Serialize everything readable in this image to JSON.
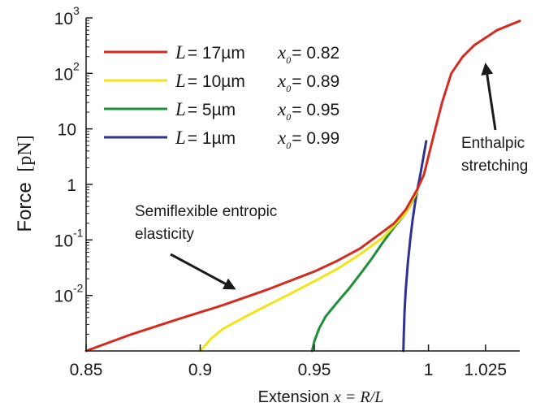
{
  "chart_data": {
    "type": "line",
    "xlabel_prefix": "Extension ",
    "xlabel_math": "x = R/L",
    "ylabel_word": "Force",
    "ylabel_unit": "[pN]",
    "x_scale": "linear",
    "y_scale": "log",
    "xlim": [
      0.85,
      1.04
    ],
    "ylim": [
      0.001,
      1000
    ],
    "x_ticks": [
      {
        "value": 0.85,
        "label": "0.85"
      },
      {
        "value": 0.9,
        "label": "0.9"
      },
      {
        "value": 0.95,
        "label": "0.95"
      },
      {
        "value": 1.0,
        "label": "1"
      },
      {
        "value": 1.025,
        "label": "1.025"
      }
    ],
    "y_ticks": [
      {
        "value": 0.01,
        "base": "10",
        "exp": "-2"
      },
      {
        "value": 0.1,
        "base": "10",
        "exp": "-1"
      },
      {
        "value": 1,
        "base": "1",
        "exp": ""
      },
      {
        "value": 10,
        "base": "10",
        "exp": ""
      },
      {
        "value": 100,
        "base": "10",
        "exp": "2"
      },
      {
        "value": 1000,
        "base": "10",
        "exp": "3"
      }
    ],
    "grid": false,
    "legend_position": "top-left",
    "series": [
      {
        "var": "L",
        "length": "= 17µm",
        "x0_sym": "x",
        "x0_sub": "0",
        "x0_val": "= 0.82",
        "color": "#d42a20",
        "x": [
          0.85,
          0.87,
          0.89,
          0.91,
          0.93,
          0.95,
          0.96,
          0.97,
          0.98,
          0.985,
          0.99,
          0.995,
          0.998,
          1.0,
          1.003,
          1.006,
          1.01,
          1.015,
          1.02,
          1.03,
          1.04
        ],
        "y": [
          0.001,
          0.002,
          0.0037,
          0.0067,
          0.013,
          0.027,
          0.042,
          0.07,
          0.14,
          0.2,
          0.35,
          0.8,
          1.5,
          3.2,
          10,
          30,
          100,
          200,
          320,
          600,
          880
        ]
      },
      {
        "var": "L",
        "length": "= 10µm",
        "x0_sym": "x",
        "x0_sub": "0",
        "x0_val": "= 0.89",
        "color": "#f2e417",
        "x": [
          0.9,
          0.905,
          0.91,
          0.92,
          0.93,
          0.94,
          0.95,
          0.96,
          0.97,
          0.98,
          0.99,
          0.995
        ],
        "y": [
          0.001,
          0.0017,
          0.0025,
          0.0042,
          0.0068,
          0.011,
          0.018,
          0.03,
          0.055,
          0.11,
          0.3,
          0.75
        ]
      },
      {
        "var": "L",
        "length": "= 5µm",
        "x0_sym": "x",
        "x0_sub": "0",
        "x0_val": "= 0.95",
        "color": "#1f8f3a",
        "x": [
          0.949,
          0.95,
          0.952,
          0.955,
          0.96,
          0.965,
          0.97,
          0.975,
          0.98,
          0.985,
          0.99,
          0.995
        ],
        "y": [
          0.001,
          0.0015,
          0.0025,
          0.0042,
          0.0075,
          0.013,
          0.024,
          0.045,
          0.09,
          0.17,
          0.3,
          0.7
        ]
      },
      {
        "var": "L",
        "length": "= 1µm",
        "x0_sym": "x",
        "x0_sub": "0",
        "x0_val": "= 0.99",
        "color": "#2e3192",
        "x": [
          0.989,
          0.9892,
          0.9895,
          0.99,
          0.991,
          0.992,
          0.993,
          0.994,
          0.995,
          0.996,
          0.997,
          0.998,
          0.999
        ],
        "y": [
          0.001,
          0.002,
          0.005,
          0.012,
          0.04,
          0.1,
          0.22,
          0.42,
          0.75,
          1.2,
          2.0,
          3.5,
          6.0
        ]
      }
    ],
    "annotations": [
      {
        "id": "entropic",
        "lines": [
          "Semiflexible entropic",
          "elasticity"
        ]
      },
      {
        "id": "enthalpic",
        "lines": [
          "Enthalpic",
          "stretching"
        ]
      }
    ]
  },
  "colors": {
    "axis": "#1a1a1a",
    "arrow": "#1a1a1a"
  }
}
